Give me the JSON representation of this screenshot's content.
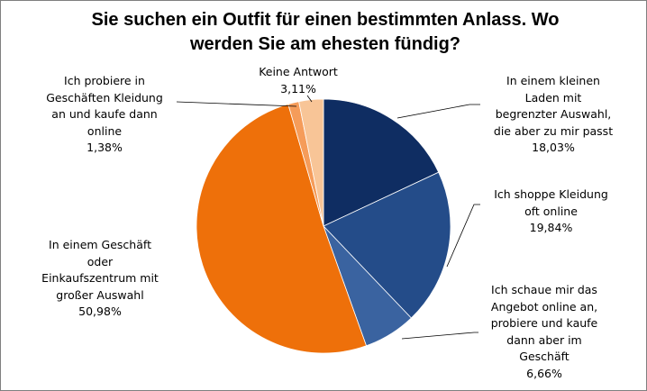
{
  "chart_data": {
    "type": "pie",
    "title_lines": [
      "Sie suchen ein Outfit für einen bestimmten Anlass. Wo",
      "werden Sie am ehesten fündig?"
    ],
    "slices": [
      {
        "label_lines": [
          "In einem kleinen",
          "Laden mit",
          "begrenzter Auswahl,",
          "die aber zu mir passt"
        ],
        "value_text": "18,03%",
        "value": 18.03,
        "color": "#0f2d62"
      },
      {
        "label_lines": [
          "Ich shoppe Kleidung",
          "oft online"
        ],
        "value_text": "19,84%",
        "value": 19.84,
        "color": "#244c89"
      },
      {
        "label_lines": [
          "Ich schaue mir das",
          "Angebot online an,",
          "probiere und kaufe",
          "dann aber im",
          "Geschäft"
        ],
        "value_text": "6,66%",
        "value": 6.66,
        "color": "#3a63a0"
      },
      {
        "label_lines": [
          "In einem Geschäft",
          "oder",
          "Einkaufszentrum mit",
          "großer Auswahl"
        ],
        "value_text": "50,98%",
        "value": 50.98,
        "color": "#ee700a"
      },
      {
        "label_lines": [
          "Ich probiere in",
          "Geschäften Kleidung",
          "an und kaufe dann",
          "online"
        ],
        "value_text": "1,38%",
        "value": 1.38,
        "color": "#f59c5a"
      },
      {
        "label_lines": [
          "Keine Antwort"
        ],
        "value_text": "3,11%",
        "value": 3.11,
        "color": "#f8c597"
      }
    ]
  }
}
